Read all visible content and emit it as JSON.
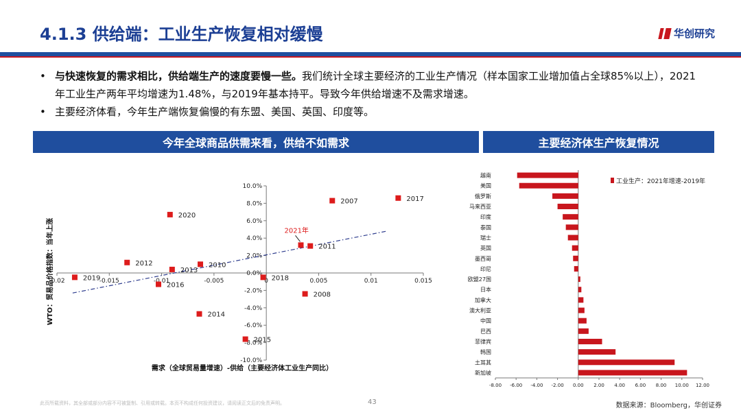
{
  "header": {
    "title": "4.1.3 供给端：工业生产恢复相对缓慢",
    "brand": "华创研究"
  },
  "bullets": [
    {
      "bold": "与快速恢复的需求相比，供给端生产的速度要慢一些。",
      "rest": "我们统计全球主要经济的工业生产情况（样本国家工业增加值占全球85%以上），2021年工业生产两年平均增速为1.48%，与2019年基本持平。导致今年供给增速不及需求增速。"
    },
    {
      "bold": "",
      "rest": "主要经济体看，今年生产端恢复偏慢的有东盟、美国、英国、印度等。"
    }
  ],
  "panels": {
    "left_title": "今年全球商品供需来看，供给不如需求",
    "right_title": "主要经济体生产恢复情况"
  },
  "colors": {
    "navy": "#1f4e9e",
    "title": "#1c3f94",
    "red": "#c8161d",
    "marker": "#dd1c1c",
    "trend": "#2b3a8c"
  },
  "chart_data": [
    {
      "type": "scatter",
      "title": "",
      "xlabel": "需求（全球贸易量增速）-供给（主要经济体工业生产同比）",
      "ylabel": "WTO：贸易品价格指数：当年上涨",
      "xlim": [
        -0.02,
        0.015
      ],
      "ylim": [
        -0.1,
        0.1
      ],
      "xticks": [
        -0.02,
        -0.015,
        -0.01,
        -0.005,
        0,
        0.005,
        0.01,
        0.015
      ],
      "xtick_labels": [
        "-0.02",
        "-0.015",
        "-0.01",
        "-0.005",
        "0",
        "0.005",
        "0.01",
        "0.015"
      ],
      "yticks": [
        -0.1,
        -0.08,
        -0.06,
        -0.04,
        -0.02,
        0,
        0.02,
        0.04,
        0.06,
        0.08,
        0.1
      ],
      "ytick_labels": [
        "-10.0%",
        "-8.0%",
        "-6.0%",
        "-4.0%",
        "-2.0%",
        "0.0%",
        "2.0%",
        "4.0%",
        "6.0%",
        "8.0%",
        "10.0%"
      ],
      "points": [
        {
          "label": "2007",
          "x": 0.0063,
          "y": 0.083
        },
        {
          "label": "2017",
          "x": 0.0126,
          "y": 0.086
        },
        {
          "label": "2020",
          "x": -0.0092,
          "y": 0.067
        },
        {
          "label": "2021年",
          "x": 0.0033,
          "y": 0.032
        },
        {
          "label": "2011",
          "x": 0.0042,
          "y": 0.031
        },
        {
          "label": "2012",
          "x": -0.0133,
          "y": 0.012
        },
        {
          "label": "2010",
          "x": -0.0063,
          "y": 0.01
        },
        {
          "label": "2013",
          "x": -0.009,
          "y": 0.004
        },
        {
          "label": "2019",
          "x": -0.0183,
          "y": -0.005
        },
        {
          "label": "2016",
          "x": -0.0103,
          "y": -0.013
        },
        {
          "label": "2018",
          "x": -0.0003,
          "y": -0.005
        },
        {
          "label": "2008",
          "x": 0.0037,
          "y": -0.024
        },
        {
          "label": "2014",
          "x": -0.0064,
          "y": -0.047
        },
        {
          "label": "2015",
          "x": -0.002,
          "y": -0.076
        }
      ],
      "trendline": {
        "x": [
          -0.0185,
          0.0115
        ],
        "y": [
          -0.023,
          0.048
        ]
      }
    },
    {
      "type": "bar",
      "orientation": "horizontal",
      "legend": "工业生产：2021年增速-2019年",
      "categories": [
        "越南",
        "美国",
        "俄罗斯",
        "马来西亚",
        "印度",
        "泰国",
        "瑞士",
        "英国",
        "墨西哥",
        "印尼",
        "欧盟27国",
        "日本",
        "加拿大",
        "澳大利亚",
        "中国",
        "巴西",
        "菲律宾",
        "韩国",
        "土耳其",
        "新加坡"
      ],
      "values": [
        -5.9,
        -5.7,
        -2.5,
        -2.0,
        -1.5,
        -1.2,
        -1.0,
        -0.6,
        -0.5,
        -0.4,
        0.2,
        0.3,
        0.5,
        0.6,
        0.8,
        1.0,
        2.3,
        3.6,
        9.3,
        10.5
      ],
      "xlim": [
        -8,
        12
      ],
      "xticks": [
        -8,
        -6,
        -4,
        -2,
        0,
        2,
        4,
        6,
        8,
        10,
        12
      ],
      "xtick_labels": [
        "-8.00",
        "-6.00",
        "-4.00",
        "-2.00",
        "0.00",
        "2.00",
        "4.00",
        "6.00",
        "8.00",
        "10.00",
        "12.00"
      ]
    }
  ],
  "footer": {
    "disclaimer": "此页所载资料，其全部或部分内容不可被复制、引用或转载。本页不构成任何投资建议，请阅读正文后的免责声明。",
    "page": "43",
    "source": "数据来源：Bloomberg，华创证券"
  }
}
